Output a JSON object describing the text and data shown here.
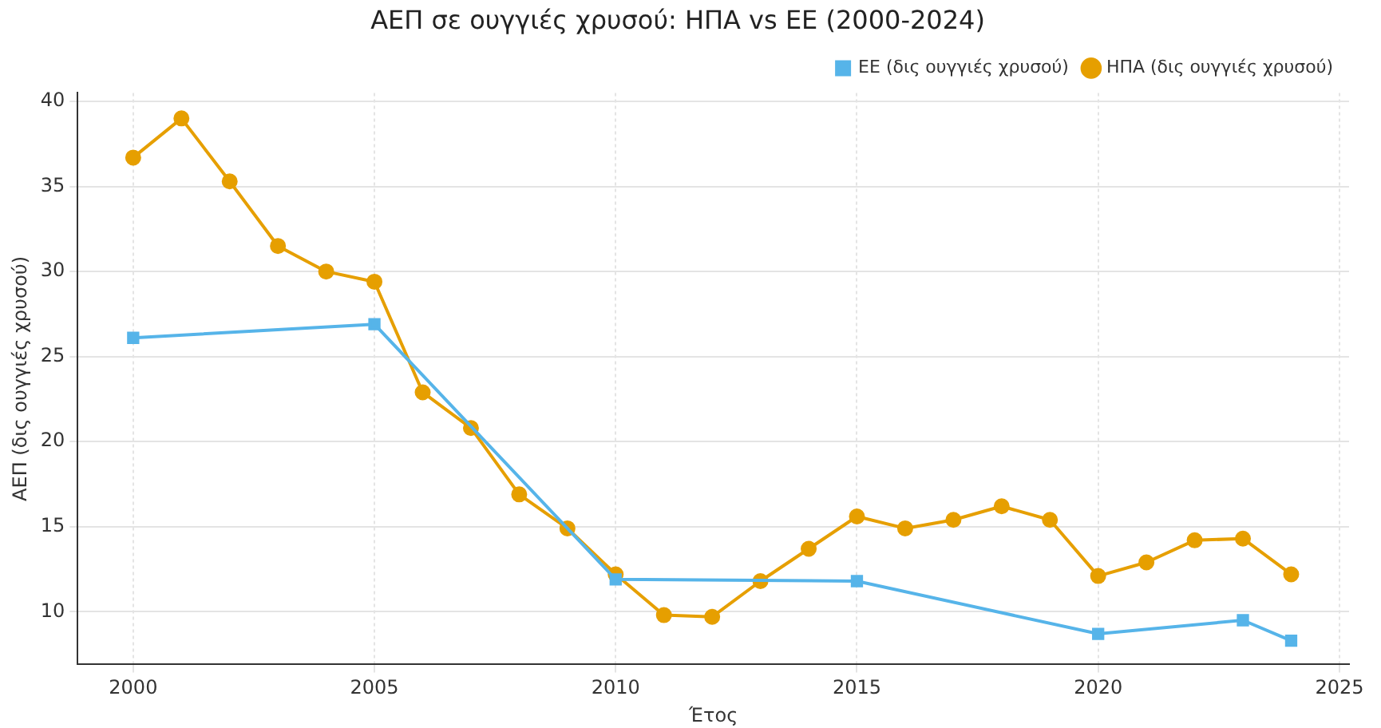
{
  "chart_data": {
    "type": "line",
    "title": "ΑΕΠ σε ουγγιές χρυσού: ΗΠΑ vs ΕΕ (2000-2024)",
    "xlabel": "Έτος",
    "ylabel": "ΑΕΠ (δις ουγγιές χρυσού)",
    "xlim": [
      1998.85,
      2025.2
    ],
    "xticks": [
      2000,
      2005,
      2010,
      2015,
      2020,
      2025
    ],
    "ylim": [
      6.9,
      40.5
    ],
    "yticks": [
      10,
      15,
      20,
      25,
      30,
      35,
      40
    ],
    "grid": true,
    "legend": "top right",
    "series": [
      {
        "name": "ΗΠΑ (δις ουγγιές χρυσού)",
        "color": "#e69f00",
        "marker": "circle",
        "x": [
          2000,
          2001,
          2002,
          2003,
          2004,
          2005,
          2006,
          2007,
          2008,
          2009,
          2010,
          2011,
          2012,
          2013,
          2014,
          2015,
          2016,
          2017,
          2018,
          2019,
          2020,
          2021,
          2022,
          2023,
          2024
        ],
        "values": [
          36.7,
          39.0,
          35.3,
          31.5,
          30.0,
          29.4,
          22.9,
          20.8,
          16.9,
          14.9,
          12.2,
          9.8,
          9.7,
          11.8,
          13.7,
          15.6,
          14.9,
          15.4,
          16.2,
          15.4,
          12.1,
          12.9,
          14.2,
          14.3,
          12.2
        ]
      },
      {
        "name": "ΕΕ (δις ουγγιές χρυσού)",
        "color": "#56b4e9",
        "marker": "square",
        "x": [
          2000,
          2005,
          2010,
          2015,
          2020,
          2023,
          2024
        ],
        "values": [
          26.1,
          26.9,
          11.9,
          11.8,
          8.7,
          9.5,
          8.3
        ]
      }
    ]
  }
}
